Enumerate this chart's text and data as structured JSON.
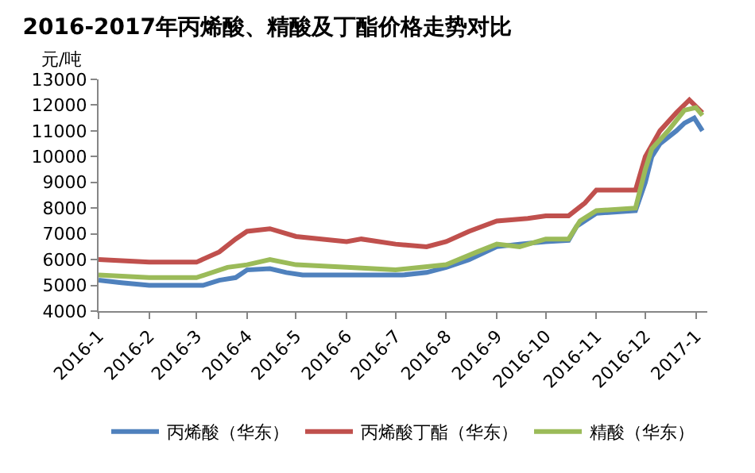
{
  "chart_data": {
    "type": "line",
    "title": "2016-2017年丙烯酸、精酸及丁酯价格走势对比",
    "ylabel": "元/吨",
    "ylim": [
      4000,
      13000
    ],
    "yticks": [
      4000,
      5000,
      6000,
      7000,
      8000,
      9000,
      10000,
      11000,
      12000,
      13000
    ],
    "xlim": [
      "2016-01-01",
      "2017-01-08"
    ],
    "xticks": [
      {
        "value": "2016-01-01",
        "label": "2016-1"
      },
      {
        "value": "2016-02-01",
        "label": "2016-2"
      },
      {
        "value": "2016-03-01",
        "label": "2016-3"
      },
      {
        "value": "2016-04-01",
        "label": "2016-4"
      },
      {
        "value": "2016-05-01",
        "label": "2016-5"
      },
      {
        "value": "2016-06-01",
        "label": "2016-6"
      },
      {
        "value": "2016-07-01",
        "label": "2016-7"
      },
      {
        "value": "2016-08-01",
        "label": "2016-8"
      },
      {
        "value": "2016-09-01",
        "label": "2016-9"
      },
      {
        "value": "2016-10-01",
        "label": "2016-10"
      },
      {
        "value": "2016-11-01",
        "label": "2016-11"
      },
      {
        "value": "2016-12-01",
        "label": "2016-12"
      },
      {
        "value": "2017-01-01",
        "label": "2017-1"
      }
    ],
    "legend": "bottom",
    "marker": "none",
    "line_style": "solid",
    "series": [
      {
        "name": "丙烯酸（华东）",
        "color": "#4f81bd",
        "x": [
          "2016-01-01",
          "2016-01-15",
          "2016-02-01",
          "2016-03-05",
          "2016-03-15",
          "2016-03-25",
          "2016-04-01",
          "2016-04-15",
          "2016-04-25",
          "2016-05-05",
          "2016-07-05",
          "2016-07-20",
          "2016-08-01",
          "2016-08-15",
          "2016-09-01",
          "2016-09-15",
          "2016-10-01",
          "2016-10-15",
          "2016-10-20",
          "2016-11-01",
          "2016-11-25",
          "2016-12-01",
          "2016-12-05",
          "2016-12-10",
          "2016-12-20",
          "2016-12-25",
          "2016-12-31",
          "2017-01-05"
        ],
        "values": [
          5200,
          5100,
          5000,
          5000,
          5200,
          5300,
          5600,
          5650,
          5500,
          5400,
          5400,
          5500,
          5700,
          6000,
          6500,
          6600,
          6700,
          6750,
          7300,
          7800,
          7900,
          9000,
          10000,
          10500,
          11000,
          11300,
          11500,
          11000
        ]
      },
      {
        "name": "丙烯酸丁酯（华东）",
        "color": "#c0504d",
        "x": [
          "2016-01-01",
          "2016-02-01",
          "2016-03-01",
          "2016-03-15",
          "2016-03-25",
          "2016-04-01",
          "2016-04-15",
          "2016-05-01",
          "2016-06-01",
          "2016-06-10",
          "2016-07-01",
          "2016-07-20",
          "2016-08-01",
          "2016-08-15",
          "2016-09-01",
          "2016-09-20",
          "2016-10-01",
          "2016-10-15",
          "2016-10-25",
          "2016-11-01",
          "2016-11-25",
          "2016-12-01",
          "2016-12-10",
          "2016-12-20",
          "2016-12-28",
          "2017-01-05"
        ],
        "values": [
          6000,
          5900,
          5900,
          6300,
          6800,
          7100,
          7200,
          6900,
          6700,
          6800,
          6600,
          6500,
          6700,
          7100,
          7500,
          7600,
          7700,
          7700,
          8200,
          8700,
          8700,
          10000,
          11000,
          11700,
          12200,
          11700
        ]
      },
      {
        "name": "精酸（华东）",
        "color": "#9bbb59",
        "x": [
          "2016-01-01",
          "2016-02-01",
          "2016-03-01",
          "2016-03-20",
          "2016-04-01",
          "2016-04-15",
          "2016-05-01",
          "2016-06-01",
          "2016-07-01",
          "2016-08-01",
          "2016-08-20",
          "2016-09-01",
          "2016-09-15",
          "2016-10-01",
          "2016-10-15",
          "2016-10-22",
          "2016-11-01",
          "2016-11-25",
          "2016-12-01",
          "2016-12-05",
          "2016-12-15",
          "2016-12-25",
          "2017-01-01",
          "2017-01-05"
        ],
        "values": [
          5400,
          5300,
          5300,
          5700,
          5800,
          6000,
          5800,
          5700,
          5600,
          5800,
          6300,
          6600,
          6500,
          6800,
          6800,
          7500,
          7900,
          8000,
          9500,
          10300,
          11000,
          11800,
          11900,
          11600
        ]
      }
    ]
  }
}
